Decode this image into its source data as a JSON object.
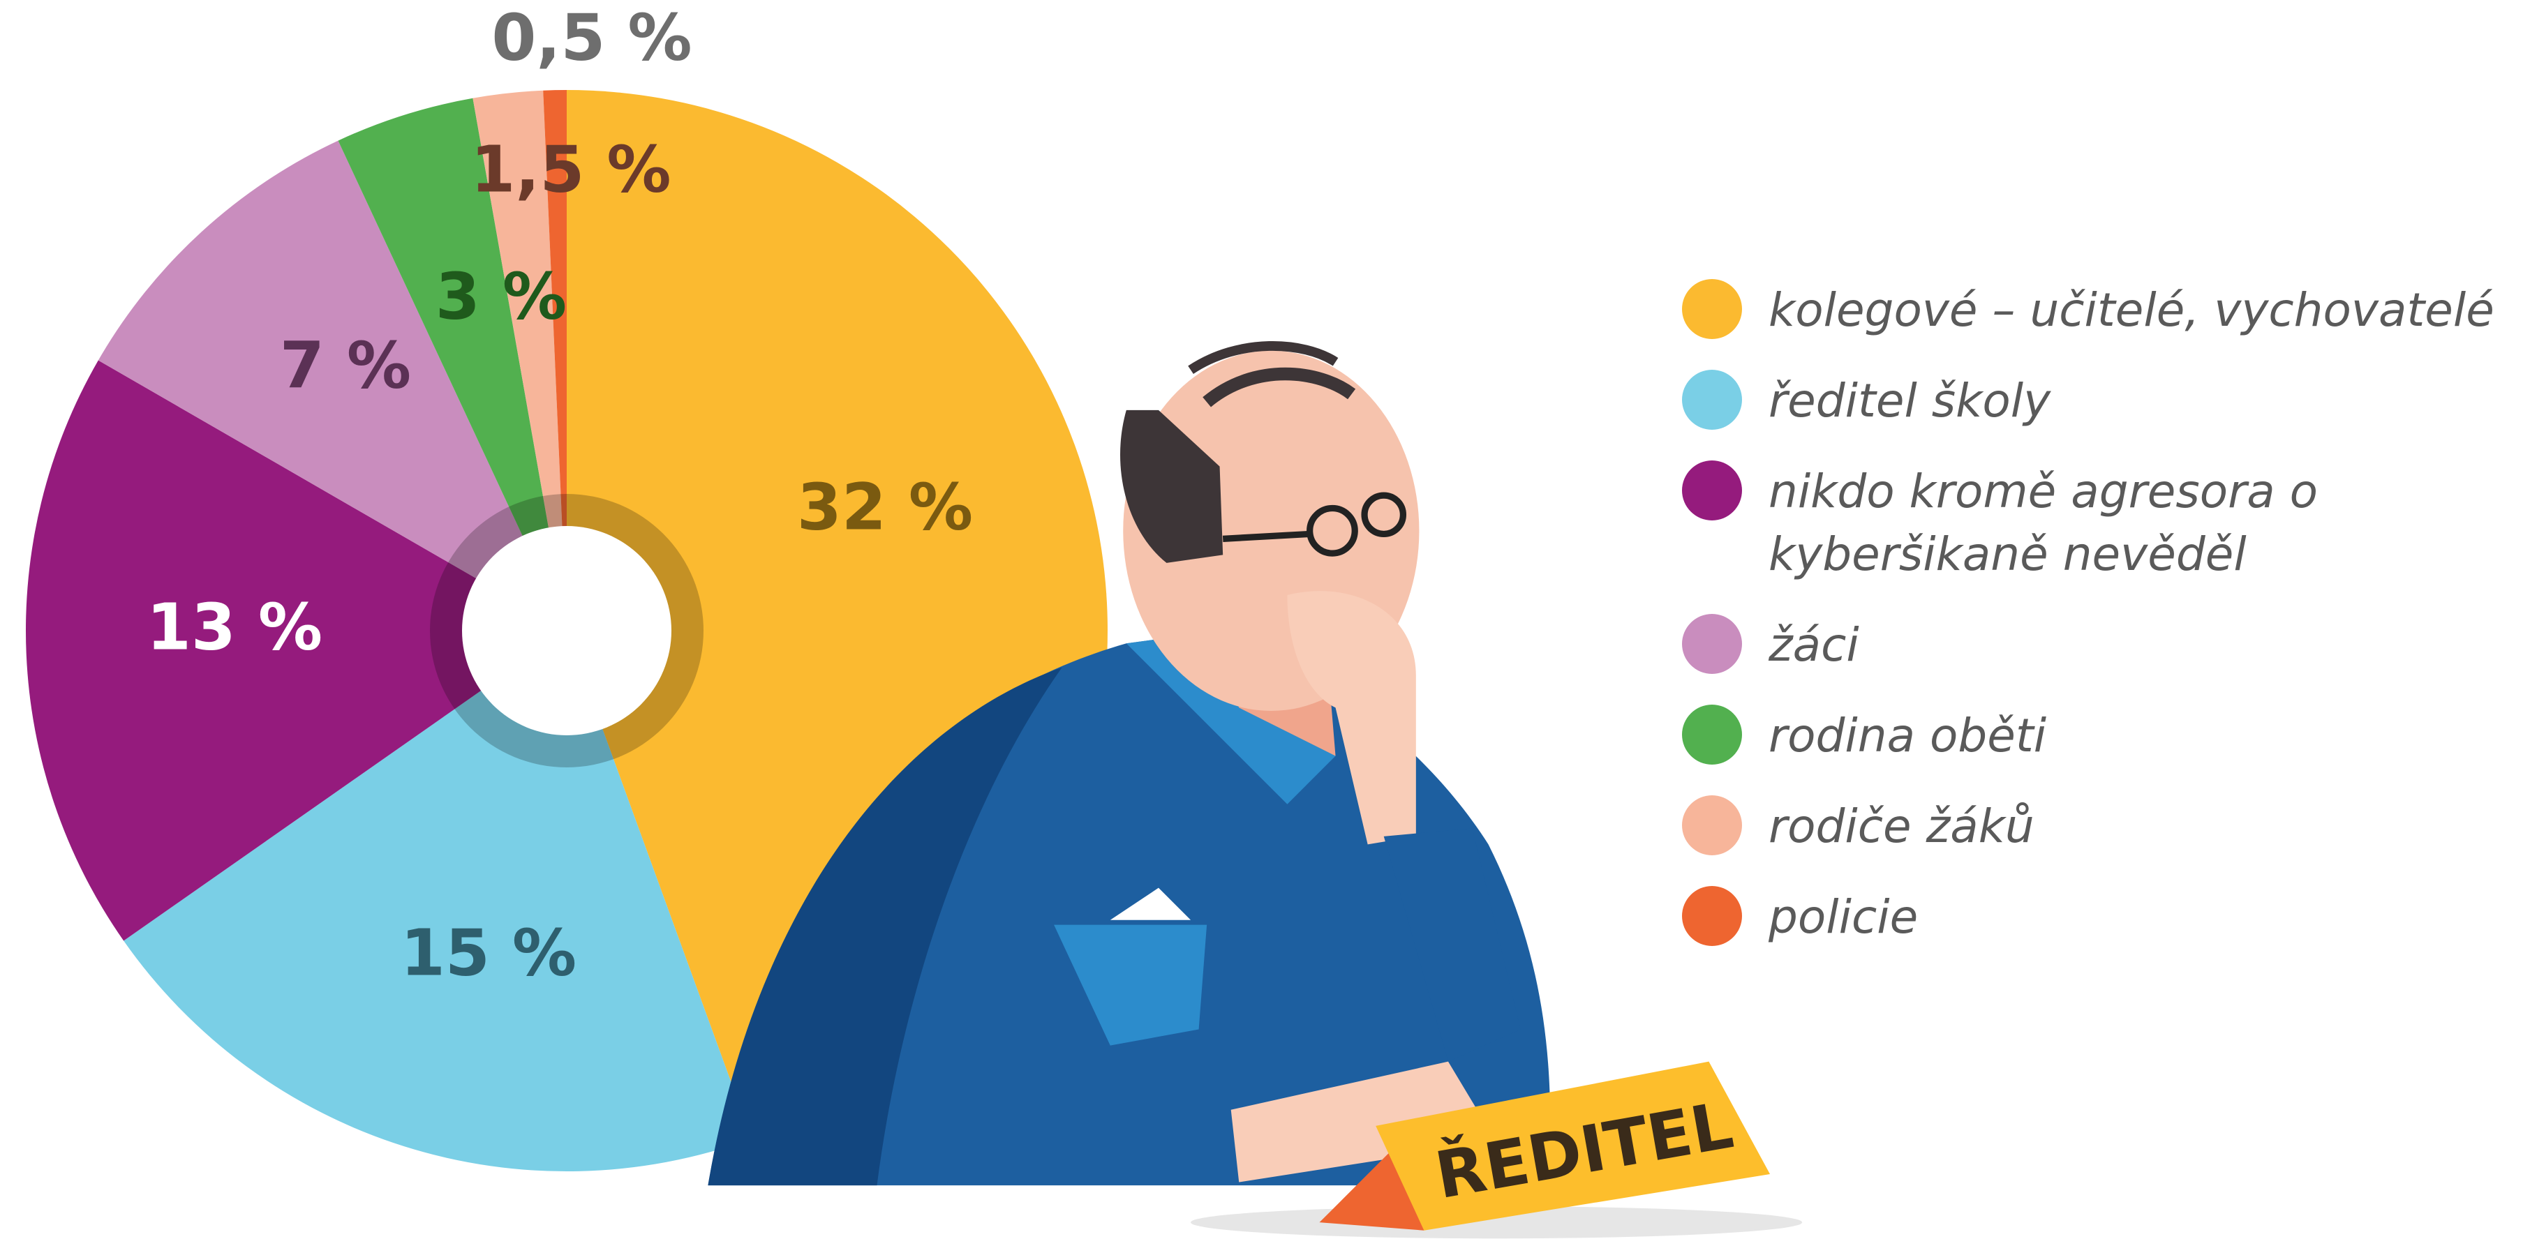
{
  "chart_data": {
    "type": "pie",
    "categories": [
      "kolegové – učitelé, vychovatelé",
      "ředitel školy",
      "nikdo kromě agresora o kyberšikaně nevěděl",
      "žáci",
      "rodina oběti",
      "rodiče žáků",
      "policie"
    ],
    "values": [
      32,
      15,
      13,
      7,
      3,
      1.5,
      0.5
    ],
    "value_labels": [
      "32 %",
      "15 %",
      "13 %",
      "7 %",
      "3 %",
      "1,5 %",
      "0,5 %"
    ],
    "colors": [
      "#FBBA30",
      "#7ACFE6",
      "#951B7D",
      "#C98DBE",
      "#52B04F",
      "#F7B59A",
      "#EE6530"
    ],
    "legend": "right",
    "annotation": "ŘEDITEL"
  }
}
